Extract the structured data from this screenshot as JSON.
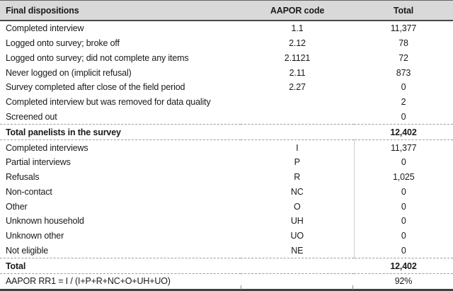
{
  "chart_data": {
    "type": "table",
    "title": "Final dispositions (AAPOR) table",
    "columns": [
      "Final dispositions",
      "AAPOR code",
      "Total"
    ],
    "rows": [
      {
        "label": "Completed interview",
        "code": "1.1",
        "total": "11,377"
      },
      {
        "label": "Logged onto survey; broke off",
        "code": "2.12",
        "total": "78"
      },
      {
        "label": "Logged onto survey; did not complete any items",
        "code": "2.1121",
        "total": "72"
      },
      {
        "label": "Never logged on (implicit refusal)",
        "code": "2.11",
        "total": "873"
      },
      {
        "label": "Survey completed after close of the field period",
        "code": "2.27",
        "total": "0"
      },
      {
        "label": "Completed interview but was removed for data quality",
        "code": "",
        "total": "2"
      },
      {
        "label": "Screened out",
        "code": "",
        "total": "0"
      },
      {
        "label": "Total panelists in the survey",
        "code": "",
        "total": "12,402"
      },
      {
        "label": "Completed interviews",
        "code": "I",
        "total": "11,377"
      },
      {
        "label": "Partial interviews",
        "code": "P",
        "total": "0"
      },
      {
        "label": "Refusals",
        "code": "R",
        "total": "1,025"
      },
      {
        "label": "Non-contact",
        "code": "NC",
        "total": "0"
      },
      {
        "label": "Other",
        "code": "O",
        "total": "0"
      },
      {
        "label": "Unknown household",
        "code": "UH",
        "total": "0"
      },
      {
        "label": "Unknown other",
        "code": "UO",
        "total": "0"
      },
      {
        "label": "Not eligible",
        "code": "NE",
        "total": "0"
      },
      {
        "label": "Total",
        "code": "",
        "total": "12,402"
      },
      {
        "label": "AAPOR RR1 = I / (I+P+R+NC+O+UH+UO)",
        "code": "",
        "total": "92%"
      }
    ],
    "layout": {
      "bold_rows": [
        7,
        16
      ],
      "dashed_separator_above_rows": [
        7,
        8,
        16,
        17
      ],
      "header_background": "#d9d9d9",
      "border_dark": "#404040",
      "dashed_line_color": "#9c9c9c",
      "column_divider_color": "#cfcfcf",
      "text_color": "#1a1a1a"
    }
  }
}
